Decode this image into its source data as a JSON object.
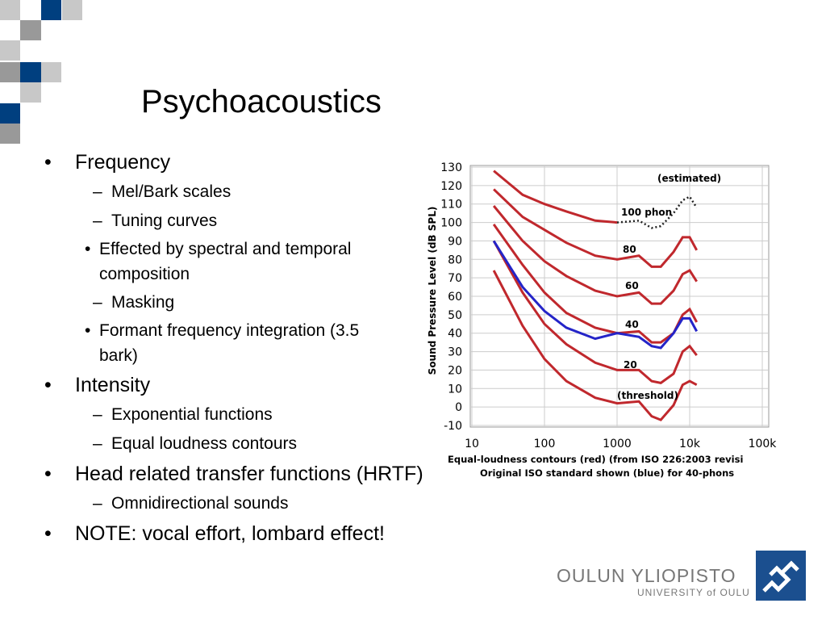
{
  "title": "Psychoacoustics",
  "bullets": [
    {
      "text": "Frequency",
      "children": [
        {
          "text": "Mel/Bark scales"
        },
        {
          "text": "Tuning curves",
          "children": [
            {
              "text": "Effected by spectral and temporal composition"
            }
          ]
        },
        {
          "text": "Masking",
          "children": [
            {
              "text": "Formant frequency integration (3.5 bark)"
            }
          ]
        }
      ]
    },
    {
      "text": "Intensity",
      "children": [
        {
          "text": "Exponential functions"
        },
        {
          "text": "Equal loudness contours"
        }
      ]
    },
    {
      "text": "Head related transfer functions (HRTF)",
      "children": [
        {
          "text": "Omnidirectional sounds"
        }
      ]
    },
    {
      "text": "NOTE: vocal effort, lombard effect!"
    }
  ],
  "logo": {
    "name": "OULUN YLIOPISTO",
    "subtitle": "UNIVERSITY of OULU"
  },
  "chart_data": {
    "type": "line",
    "y_label": "Sound Pressure Level (dB SPL)",
    "caption": [
      "Equal-loudness contours (red) (from ISO 226:2003 revisi",
      "Original ISO standard shown (blue) for 40-phons"
    ],
    "x": [
      20,
      50,
      100,
      200,
      500,
      1000,
      2000,
      3000,
      4000,
      6000,
      8000,
      10000,
      12500
    ],
    "x_log": true,
    "xlim": [
      10,
      100000
    ],
    "xticks": [
      10,
      100,
      1000,
      {
        "value": 10000,
        "label": "10k"
      },
      {
        "value": 100000,
        "label": "100k"
      }
    ],
    "ylim": [
      -10,
      130
    ],
    "yticks": [
      -10,
      0,
      10,
      20,
      30,
      40,
      50,
      60,
      70,
      80,
      90,
      100,
      110,
      120,
      130
    ],
    "grid": true,
    "series": [
      {
        "name": "(threshold)",
        "color": "#c0282d",
        "values": [
          74,
          44,
          26,
          14,
          5,
          2,
          3,
          -5,
          -7,
          1,
          12,
          14,
          12
        ]
      },
      {
        "name": "20",
        "color": "#c0282d",
        "values": [
          90,
          62,
          45,
          34,
          24,
          20,
          20,
          14,
          13,
          18,
          30,
          33,
          28
        ]
      },
      {
        "name": "40",
        "color": "#c0282d",
        "values": [
          99,
          77,
          62,
          51,
          43,
          40,
          41,
          35,
          35,
          40,
          50,
          53,
          46
        ]
      },
      {
        "name": "60",
        "color": "#c0282d",
        "values": [
          109,
          90,
          79,
          71,
          63,
          60,
          62,
          56,
          56,
          63,
          72,
          74,
          68
        ]
      },
      {
        "name": "80",
        "color": "#c0282d",
        "values": [
          118,
          103,
          96,
          89,
          82,
          80,
          82,
          76,
          76,
          84,
          92,
          92,
          85
        ]
      },
      {
        "name": "100 phon",
        "color": "#c0282d",
        "values": [
          128,
          115,
          110,
          106,
          101,
          100,
          null,
          null,
          null,
          null,
          null,
          null,
          null
        ]
      },
      {
        "name": "(estimated)",
        "color": "#222222",
        "dashed": true,
        "values": [
          null,
          null,
          null,
          null,
          null,
          100,
          101,
          97,
          98,
          105,
          112,
          114,
          108
        ]
      },
      {
        "color": "#2424c8",
        "values": [
          90,
          65,
          52,
          43,
          37,
          40,
          38,
          33,
          32,
          40,
          48,
          48,
          41
        ]
      }
    ]
  }
}
